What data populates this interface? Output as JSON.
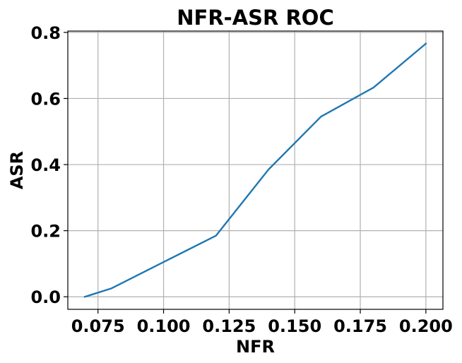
{
  "chart_data": {
    "type": "line",
    "title": "NFR-ASR ROC",
    "xlabel": "NFR",
    "ylabel": "ASR",
    "xlim": [
      0.0635,
      0.2065
    ],
    "ylim": [
      -0.038,
      0.804
    ],
    "xticks": [
      "0.075",
      "0.100",
      "0.125",
      "0.150",
      "0.175",
      "0.200"
    ],
    "xtick_values": [
      0.075,
      0.1,
      0.125,
      0.15,
      0.175,
      0.2
    ],
    "yticks": [
      "0.0",
      "0.2",
      "0.4",
      "0.6",
      "0.8"
    ],
    "ytick_values": [
      0.0,
      0.2,
      0.4,
      0.6,
      0.8
    ],
    "grid": true,
    "series": [
      {
        "x": [
          0.07,
          0.08,
          0.1,
          0.12,
          0.14,
          0.16,
          0.18,
          0.2
        ],
        "y": [
          0.0,
          0.025,
          0.105,
          0.185,
          0.385,
          0.545,
          0.633,
          0.766
        ],
        "color": "#1f77b4"
      }
    ],
    "grid_color": "#b0b0b0",
    "axes_color": "#000000"
  }
}
